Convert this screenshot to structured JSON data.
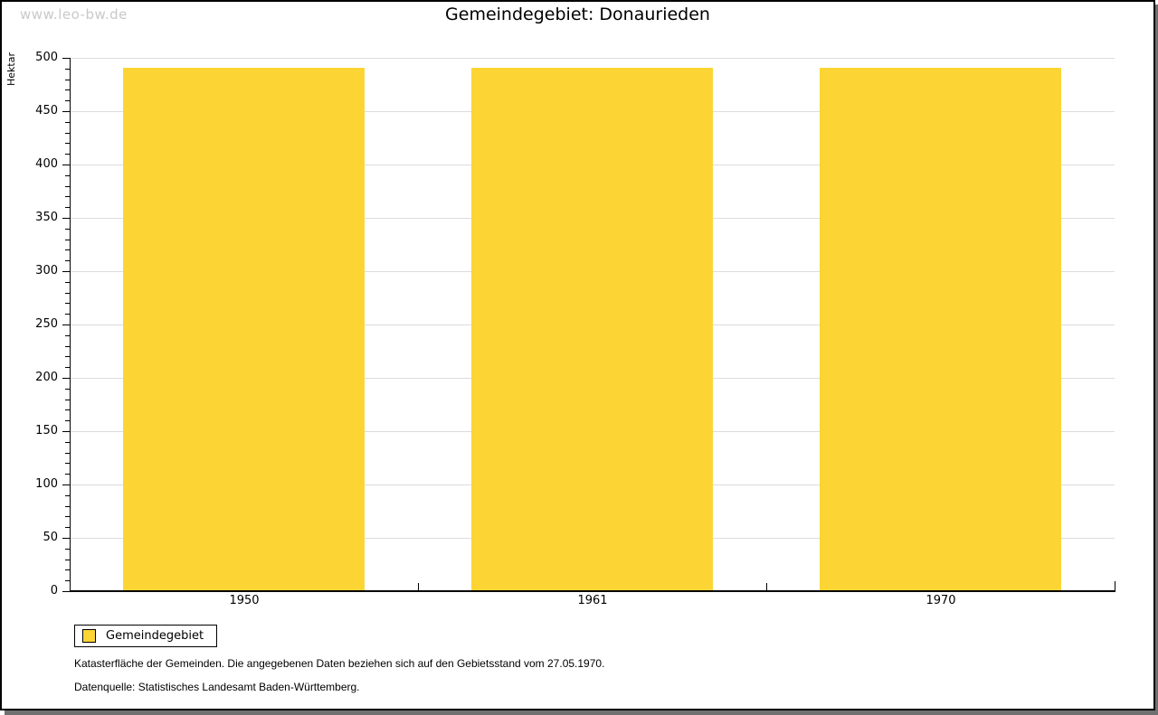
{
  "watermark": "www.leo-bw.de",
  "title": "Gemeindegebiet: Donaurieden",
  "chart_data": {
    "type": "bar",
    "title": "Gemeindegebiet: Donaurieden",
    "categories": [
      "1950",
      "1961",
      "1970"
    ],
    "series": [
      {
        "name": "Gemeindegebiet",
        "values": [
          490,
          490,
          490
        ],
        "color": "#fcd535"
      }
    ],
    "xlabel": "",
    "ylabel": "Hektar",
    "ylim": [
      0,
      500
    ],
    "ytick_interval": 50,
    "y_minor_tick_interval": 10,
    "grid": true,
    "legend_position": "bottom-left"
  },
  "legend": {
    "items": [
      {
        "label": "Gemeindegebiet",
        "color": "#fcd535"
      }
    ]
  },
  "footer": {
    "line1": "Katasterfläche der Gemeinden. Die angegebenen Daten beziehen sich auf den Gebietsstand vom 27.05.1970.",
    "line2": "Datenquelle: Statistisches Landesamt Baden-Württemberg."
  },
  "colors": {
    "bar": "#fcd535",
    "grid": "#dcdcdc",
    "axis": "#000000",
    "watermark": "#c9c9c9",
    "shadow": "#707070",
    "background": "#ffffff"
  }
}
